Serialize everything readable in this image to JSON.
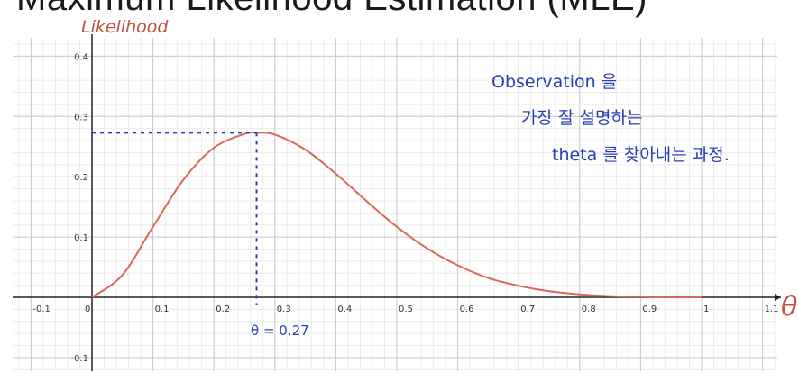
{
  "title": "Maximum Likelihood Estimation (MLE)",
  "chart_data": {
    "type": "line",
    "ylabel": "Likelihood",
    "xlabel": "θ",
    "xlim": [
      -0.12,
      1.15
    ],
    "ylim": [
      -0.12,
      0.42
    ],
    "x_ticks": [
      "-0.1",
      "0",
      "0.1",
      "0.2",
      "0.3",
      "0.4",
      "0.5",
      "0.6",
      "0.7",
      "0.8",
      "0.9",
      "1",
      "1.1"
    ],
    "x_tick_values": [
      -0.1,
      0,
      0.1,
      0.2,
      0.3,
      0.4,
      0.5,
      0.6,
      0.7,
      0.8,
      0.9,
      1,
      1.1
    ],
    "y_ticks": [
      "-0.1",
      "0.1",
      "0.2",
      "0.3",
      "0.4"
    ],
    "y_tick_values": [
      -0.1,
      0.1,
      0.2,
      0.3,
      0.4
    ],
    "grid": true,
    "series": [
      {
        "color": "#d9675a",
        "x": [
          0,
          0.05,
          0.1,
          0.15,
          0.2,
          0.25,
          0.27,
          0.3,
          0.35,
          0.4,
          0.45,
          0.5,
          0.55,
          0.6,
          0.65,
          0.7,
          0.75,
          0.8,
          0.85,
          0.9,
          0.95,
          1
        ],
        "y": [
          0,
          0.037,
          0.117,
          0.195,
          0.248,
          0.271,
          0.273,
          0.27,
          0.245,
          0.205,
          0.16,
          0.117,
          0.081,
          0.053,
          0.032,
          0.019,
          0.01,
          0.005,
          0.002,
          0.001,
          0.0002,
          0
        ]
      }
    ],
    "annotations": {
      "peak_x": 0.27,
      "peak_y": 0.273,
      "peak_label": "θ = 0.27",
      "note_lines": [
        "Observation 을",
        "가장 잘 설명하는",
        "theta 를 찾아내는 과정."
      ],
      "note_color": "#2a3fb5",
      "marker_color": "#2a3fb5"
    }
  }
}
